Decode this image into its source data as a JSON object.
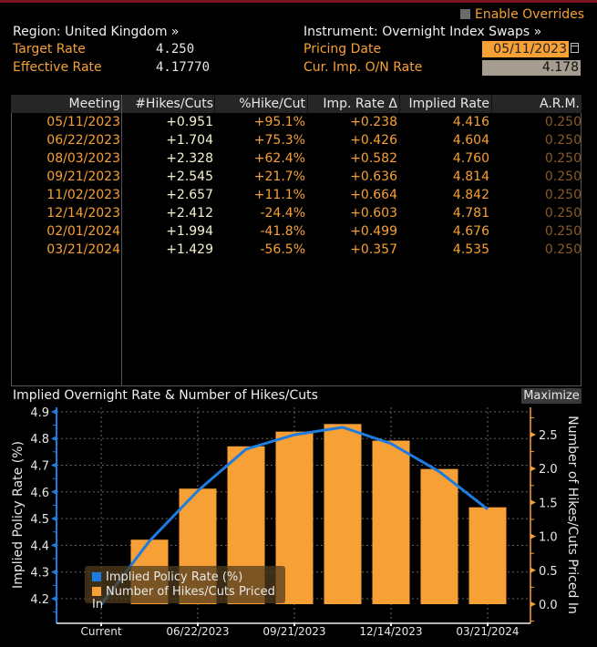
{
  "header": {
    "region_label": "Region: United Kingdom »",
    "instrument_label": "Instrument: Overnight Index Swaps »",
    "enable_overrides_label": "Enable Overrides",
    "enable_overrides_checked": false,
    "target_rate_label": "Target Rate",
    "target_rate_value": "4.250",
    "effective_rate_label": "Effective Rate",
    "effective_rate_value": "4.17770",
    "pricing_date_label": "Pricing Date",
    "pricing_date_value": "05/11/2023",
    "cur_imp_label": "Cur. Imp. O/N Rate",
    "cur_imp_value": "4.178"
  },
  "table": {
    "columns": [
      "Meeting",
      "#Hikes/Cuts",
      "%Hike/Cut",
      "Imp. Rate Δ",
      "Implied Rate",
      "A.R.M."
    ],
    "rows": [
      [
        "05/11/2023",
        "+0.951",
        "+95.1%",
        "+0.238",
        "4.416",
        "0.250"
      ],
      [
        "06/22/2023",
        "+1.704",
        "+75.3%",
        "+0.426",
        "4.604",
        "0.250"
      ],
      [
        "08/03/2023",
        "+2.328",
        "+62.4%",
        "+0.582",
        "4.760",
        "0.250"
      ],
      [
        "09/21/2023",
        "+2.545",
        "+21.7%",
        "+0.636",
        "4.814",
        "0.250"
      ],
      [
        "11/02/2023",
        "+2.657",
        "+11.1%",
        "+0.664",
        "4.842",
        "0.250"
      ],
      [
        "12/14/2023",
        "+2.412",
        "-24.4%",
        "+0.603",
        "4.781",
        "0.250"
      ],
      [
        "02/01/2024",
        "+1.994",
        "-41.8%",
        "+0.499",
        "4.676",
        "0.250"
      ],
      [
        "03/21/2024",
        "+1.429",
        "-56.5%",
        "+0.357",
        "4.535",
        "0.250"
      ]
    ]
  },
  "chart_panel": {
    "title": "Implied Overnight Rate & Number of Hikes/Cuts",
    "maximize_label": "Maximize"
  },
  "colors": {
    "line": "#1e7be0",
    "bar": "#f7a035",
    "accent_orange": "#f7a035"
  },
  "chart_data": {
    "type": "bar+line",
    "title": "Implied Overnight Rate & Number of Hikes/Cuts",
    "categories": [
      "Current",
      "05/11/2023",
      "06/22/2023",
      "08/03/2023",
      "09/21/2023",
      "11/02/2023",
      "12/14/2023",
      "02/01/2024",
      "03/21/2024"
    ],
    "x_tick_labels": [
      "Current",
      "06/22/2023",
      "09/21/2023",
      "12/14/2023",
      "03/21/2024"
    ],
    "series": [
      {
        "name": "Implied Policy Rate (%)",
        "type": "line",
        "axis": "left",
        "values": [
          4.178,
          4.416,
          4.604,
          4.76,
          4.814,
          4.842,
          4.781,
          4.676,
          4.535
        ]
      },
      {
        "name": "Number of Hikes/Cuts Priced In",
        "type": "bar",
        "axis": "right",
        "values": [
          null,
          0.951,
          1.704,
          2.328,
          2.545,
          2.657,
          2.412,
          1.994,
          1.429
        ]
      }
    ],
    "ylabel": "Implied Policy Rate (%)",
    "y2label": "Number of Hikes/Cuts Priced In",
    "ylim": [
      4.15,
      4.9
    ],
    "y_ticks": [
      "4.2",
      "4.3",
      "4.4",
      "4.5",
      "4.6",
      "4.7",
      "4.8",
      "4.9"
    ],
    "y2lim": [
      -0.1,
      2.8
    ],
    "y2_ticks": [
      "0.0",
      "0.5",
      "1.0",
      "1.5",
      "2.0",
      "2.5"
    ],
    "grid": true,
    "legend_position": "bottom-left",
    "legend": [
      "Implied Policy Rate (%)",
      "Number of Hikes/Cuts Priced In"
    ]
  }
}
